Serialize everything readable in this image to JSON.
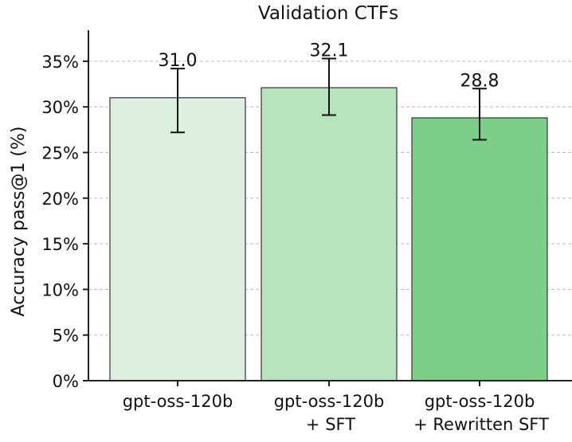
{
  "chart_data": {
    "type": "bar",
    "title": "Validation CTFs",
    "xlabel": "",
    "ylabel": "Accuracy pass@1 (%)",
    "ylim": [
      0,
      37.5
    ],
    "yticks": [
      0,
      5,
      10,
      15,
      20,
      25,
      30,
      35
    ],
    "ytick_labels": [
      "0%",
      "5%",
      "10%",
      "15%",
      "20%",
      "25%",
      "30%",
      "35%"
    ],
    "grid": true,
    "categories": [
      [
        "gpt-oss-120b"
      ],
      [
        "gpt-oss-120b",
        "+ SFT"
      ],
      [
        "gpt-oss-120b",
        "+ Rewritten SFT"
      ]
    ],
    "values": [
      31.0,
      32.1,
      28.8
    ],
    "data_labels": [
      "31.0",
      "32.1",
      "28.8"
    ],
    "error_low": [
      27.2,
      29.1,
      26.4
    ],
    "error_high": [
      34.2,
      35.3,
      32.0
    ],
    "colors": [
      "#dcefe0",
      "#b8e4bd",
      "#7cce89"
    ]
  }
}
